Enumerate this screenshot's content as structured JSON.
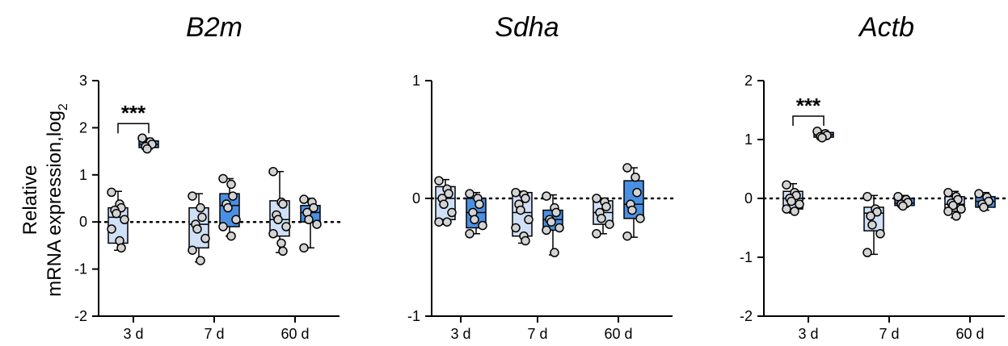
{
  "y_axis_title": {
    "line1": "Relative",
    "line2": "mRNA expression,log",
    "subscript": "2"
  },
  "colors": {
    "light": "#cfe0f7",
    "dark": "#4a90e2",
    "point": "#d3d3d3",
    "stroke": "#000000"
  },
  "chart_data": [
    {
      "type": "box",
      "title": "B2m",
      "ylim": [
        -2,
        3
      ],
      "yticks": [
        "-2",
        "-1",
        "0",
        "1",
        "2",
        "3"
      ],
      "categories": [
        "3 d",
        "7 d",
        "60 d"
      ],
      "reference_line": 0,
      "significance": [
        {
          "category": "3 d",
          "label": "***"
        }
      ],
      "boxes": [
        {
          "category": "3 d",
          "group": "light",
          "min": -0.6,
          "q1": -0.45,
          "median": 0.1,
          "q3": 0.3,
          "max": 0.65,
          "points": [
            0.63,
            0.38,
            0.3,
            0.25,
            0.18,
            0.05,
            -0.15,
            -0.4,
            -0.55
          ]
        },
        {
          "category": "3 d",
          "group": "dark",
          "min": 1.55,
          "q1": 1.58,
          "median": 1.65,
          "q3": 1.72,
          "max": 1.78,
          "points": [
            1.78,
            1.7,
            1.65,
            1.6,
            1.55
          ]
        },
        {
          "category": "7 d",
          "group": "light",
          "min": -0.85,
          "q1": -0.55,
          "median": -0.05,
          "q3": 0.3,
          "max": 0.6,
          "points": [
            0.55,
            0.3,
            0.1,
            -0.05,
            -0.15,
            -0.35,
            -0.6,
            -0.82
          ]
        },
        {
          "category": "7 d",
          "group": "dark",
          "min": -0.3,
          "q1": -0.1,
          "median": 0.35,
          "q3": 0.6,
          "max": 0.92,
          "points": [
            0.92,
            0.8,
            0.55,
            0.38,
            0.3,
            0.05,
            -0.1,
            -0.3
          ]
        },
        {
          "category": "60 d",
          "group": "light",
          "min": -0.65,
          "q1": -0.3,
          "median": 0.05,
          "q3": 0.45,
          "max": 1.07,
          "points": [
            1.07,
            0.42,
            0.38,
            0.15,
            0.05,
            -0.1,
            -0.25,
            -0.45,
            -0.62
          ]
        },
        {
          "category": "60 d",
          "group": "dark",
          "min": -0.55,
          "q1": 0.0,
          "median": 0.2,
          "q3": 0.35,
          "max": 0.5,
          "points": [
            0.48,
            0.42,
            0.3,
            0.2,
            0.05,
            -0.05,
            -0.55
          ]
        }
      ]
    },
    {
      "type": "box",
      "title": "Sdha",
      "ylim": [
        -1,
        1
      ],
      "yticks": [
        "-1",
        "0",
        "1"
      ],
      "categories": [
        "3 d",
        "7 d",
        "60 d"
      ],
      "reference_line": 0,
      "significance": [],
      "boxes": [
        {
          "category": "3 d",
          "group": "light",
          "min": -0.22,
          "q1": -0.18,
          "median": 0.0,
          "q3": 0.1,
          "max": 0.16,
          "points": [
            0.15,
            0.08,
            0.04,
            0.0,
            -0.05,
            -0.12,
            -0.2,
            -0.2
          ]
        },
        {
          "category": "3 d",
          "group": "dark",
          "min": -0.3,
          "q1": -0.25,
          "median": -0.12,
          "q3": 0.0,
          "max": 0.05,
          "points": [
            0.04,
            0.0,
            -0.05,
            -0.12,
            -0.18,
            -0.23,
            -0.3
          ]
        },
        {
          "category": "7 d",
          "group": "light",
          "min": -0.38,
          "q1": -0.32,
          "median": -0.12,
          "q3": 0.05,
          "max": 0.06,
          "points": [
            0.05,
            0.03,
            0.0,
            -0.05,
            -0.1,
            -0.18,
            -0.25,
            -0.32,
            -0.36
          ]
        },
        {
          "category": "7 d",
          "group": "dark",
          "min": -0.48,
          "q1": -0.27,
          "median": -0.18,
          "q3": -0.1,
          "max": 0.03,
          "points": [
            0.02,
            -0.08,
            -0.12,
            -0.18,
            -0.2,
            -0.25,
            -0.27,
            -0.46
          ]
        },
        {
          "category": "60 d",
          "group": "light",
          "min": -0.3,
          "q1": -0.22,
          "median": -0.12,
          "q3": -0.02,
          "max": 0.0,
          "points": [
            0.0,
            -0.03,
            -0.07,
            -0.12,
            -0.17,
            -0.22,
            -0.3
          ]
        },
        {
          "category": "60 d",
          "group": "dark",
          "min": -0.33,
          "q1": -0.17,
          "median": -0.05,
          "q3": 0.15,
          "max": 0.26,
          "points": [
            0.26,
            0.18,
            0.05,
            -0.05,
            -0.1,
            -0.17,
            -0.32
          ]
        }
      ]
    },
    {
      "type": "box",
      "title": "Actb",
      "ylim": [
        -2,
        2
      ],
      "yticks": [
        "-2",
        "-1",
        "0",
        "1",
        "2"
      ],
      "categories": [
        "3 d",
        "7 d",
        "60 d"
      ],
      "reference_line": 0,
      "significance": [
        {
          "category": "3 d",
          "label": "***"
        }
      ],
      "boxes": [
        {
          "category": "3 d",
          "group": "light",
          "min": -0.25,
          "q1": -0.18,
          "median": 0.0,
          "q3": 0.12,
          "max": 0.25,
          "points": [
            0.23,
            0.1,
            0.05,
            0.0,
            -0.05,
            -0.1,
            -0.18,
            -0.22
          ]
        },
        {
          "category": "3 d",
          "group": "dark",
          "min": 1.0,
          "q1": 1.04,
          "median": 1.08,
          "q3": 1.12,
          "max": 1.15,
          "points": [
            1.14,
            1.1,
            1.07,
            1.05,
            1.03
          ]
        },
        {
          "category": "7 d",
          "group": "light",
          "min": -0.95,
          "q1": -0.55,
          "median": -0.25,
          "q3": -0.15,
          "max": 0.05,
          "points": [
            0.03,
            -0.18,
            -0.23,
            -0.3,
            -0.45,
            -0.6,
            -0.92
          ]
        },
        {
          "category": "7 d",
          "group": "dark",
          "min": -0.15,
          "q1": -0.12,
          "median": -0.08,
          "q3": 0.0,
          "max": 0.05,
          "points": [
            0.03,
            -0.02,
            -0.07,
            -0.1,
            -0.13
          ]
        },
        {
          "category": "60 d",
          "group": "light",
          "min": -0.33,
          "q1": -0.22,
          "median": -0.1,
          "q3": 0.03,
          "max": 0.12,
          "points": [
            0.1,
            0.03,
            -0.02,
            -0.08,
            -0.12,
            -0.18,
            -0.22,
            -0.3
          ]
        },
        {
          "category": "60 d",
          "group": "dark",
          "min": -0.2,
          "q1": -0.15,
          "median": -0.05,
          "q3": 0.03,
          "max": 0.1,
          "points": [
            0.08,
            0.02,
            -0.05,
            -0.1,
            -0.15
          ]
        }
      ]
    }
  ]
}
